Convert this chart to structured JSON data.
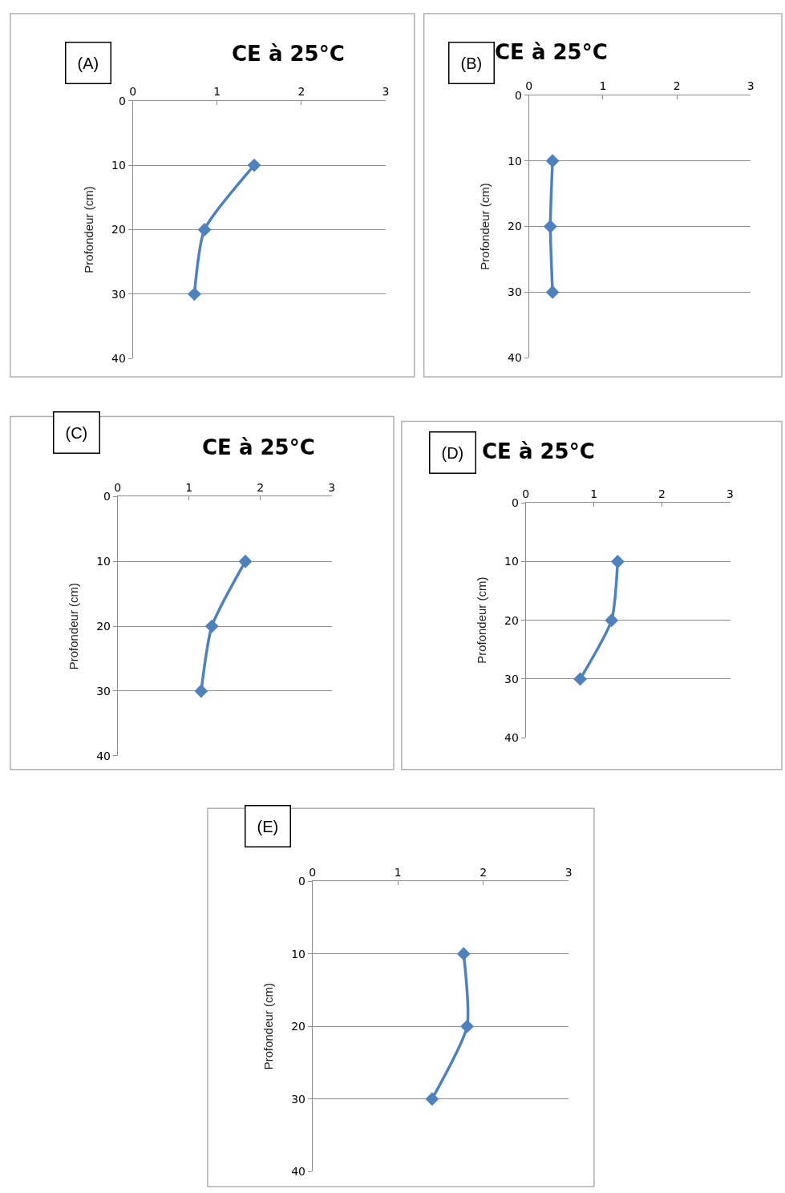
{
  "chart_data": [
    {
      "type": "line",
      "title": "CE à 25°C",
      "ylabel": "Profondeur (cm)",
      "annotations": [
        "(A)"
      ],
      "orientation": "horizontal",
      "x": [
        10,
        20,
        30
      ],
      "series": [
        {
          "color": "#4f81bd",
          "values": [
            1.44,
            0.85,
            0.73
          ]
        }
      ],
      "xlim": [
        0,
        3
      ],
      "xticks": [
        0,
        1,
        2,
        3
      ],
      "ylim": [
        40,
        0
      ],
      "yticks": [
        0,
        10,
        20,
        30,
        40
      ],
      "grid": "y",
      "marker": "diamond",
      "line_style": "solid"
    },
    {
      "type": "line",
      "title": "CE à 25°C",
      "ylabel": "Profondeur (cm)",
      "annotations": [
        "(B)"
      ],
      "orientation": "horizontal",
      "x": [
        10,
        20,
        30
      ],
      "series": [
        {
          "color": "#4f81bd",
          "values": [
            0.32,
            0.29,
            0.32
          ]
        }
      ],
      "xlim": [
        0,
        3
      ],
      "xticks": [
        0,
        1,
        2,
        3
      ],
      "ylim": [
        40,
        0
      ],
      "yticks": [
        0,
        10,
        20,
        30,
        40
      ],
      "grid": "y",
      "marker": "diamond",
      "line_style": "solid"
    },
    {
      "type": "line",
      "title": "CE à 25°C",
      "ylabel": "Profondeur (cm)",
      "annotations": [
        "(C)"
      ],
      "orientation": "horizontal",
      "x": [
        10,
        20,
        30
      ],
      "series": [
        {
          "color": "#4f81bd",
          "values": [
            1.79,
            1.32,
            1.17
          ]
        }
      ],
      "xlim": [
        0,
        3
      ],
      "xticks": [
        0,
        1,
        2,
        3
      ],
      "ylim": [
        40,
        0
      ],
      "yticks": [
        0,
        10,
        20,
        30,
        40
      ],
      "grid": "y",
      "marker": "diamond",
      "line_style": "solid"
    },
    {
      "type": "line",
      "title": "CE à 25°C",
      "ylabel": "Profondeur (cm)",
      "annotations": [
        "(D)"
      ],
      "orientation": "horizontal",
      "x": [
        10,
        20,
        30
      ],
      "series": [
        {
          "color": "#4f81bd",
          "values": [
            1.35,
            1.26,
            0.8
          ]
        }
      ],
      "xlim": [
        0,
        3
      ],
      "xticks": [
        0,
        1,
        2,
        3
      ],
      "ylim": [
        40,
        0
      ],
      "yticks": [
        0,
        10,
        20,
        30,
        40
      ],
      "grid": "y",
      "marker": "diamond",
      "line_style": "solid"
    },
    {
      "type": "line",
      "ylabel": "Profondeur (cm)",
      "annotations": [
        "(E)"
      ],
      "orientation": "horizontal",
      "x": [
        10,
        20,
        30
      ],
      "series": [
        {
          "color": "#4f81bd",
          "values": [
            1.77,
            1.81,
            1.4
          ]
        }
      ],
      "xlim": [
        0,
        3
      ],
      "xticks": [
        0,
        1,
        2,
        3
      ],
      "ylim": [
        40,
        0
      ],
      "yticks": [
        0,
        10,
        20,
        30,
        40
      ],
      "grid": "y",
      "marker": "diamond",
      "line_style": "solid"
    }
  ]
}
